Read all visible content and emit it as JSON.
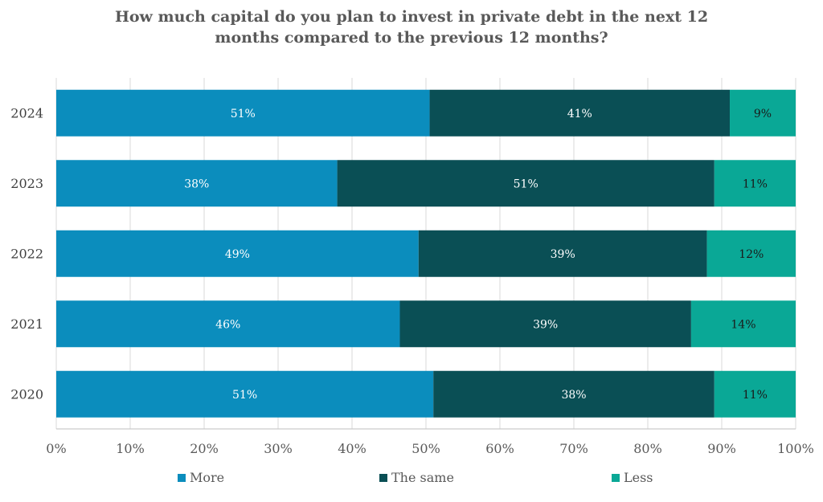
{
  "chart_data": {
    "type": "bar",
    "orientation": "horizontal",
    "stacked": true,
    "title_lines": [
      "How much capital do you plan to invest in private debt in the next 12",
      "months compared to the previous 12 months?"
    ],
    "categories": [
      "2024",
      "2023",
      "2022",
      "2021",
      "2020"
    ],
    "series": [
      {
        "name": "More",
        "color": "#0b8dbd",
        "values": [
          51,
          38,
          49,
          46,
          51
        ]
      },
      {
        "name": "The same",
        "color": "#0a4f55",
        "values": [
          41,
          51,
          39,
          39,
          38
        ]
      },
      {
        "name": "Less",
        "color": "#0aa896",
        "values": [
          9,
          11,
          12,
          14,
          11
        ]
      }
    ],
    "data_label_suffix": "%",
    "xlim": [
      0,
      100
    ],
    "xticks": [
      0,
      10,
      20,
      30,
      40,
      50,
      60,
      70,
      80,
      90,
      100
    ],
    "xtick_labels": [
      "0%",
      "10%",
      "20%",
      "30%",
      "40%",
      "50%",
      "60%",
      "70%",
      "80%",
      "90%",
      "100%"
    ],
    "grid": "vertical",
    "legend_position": "bottom"
  }
}
